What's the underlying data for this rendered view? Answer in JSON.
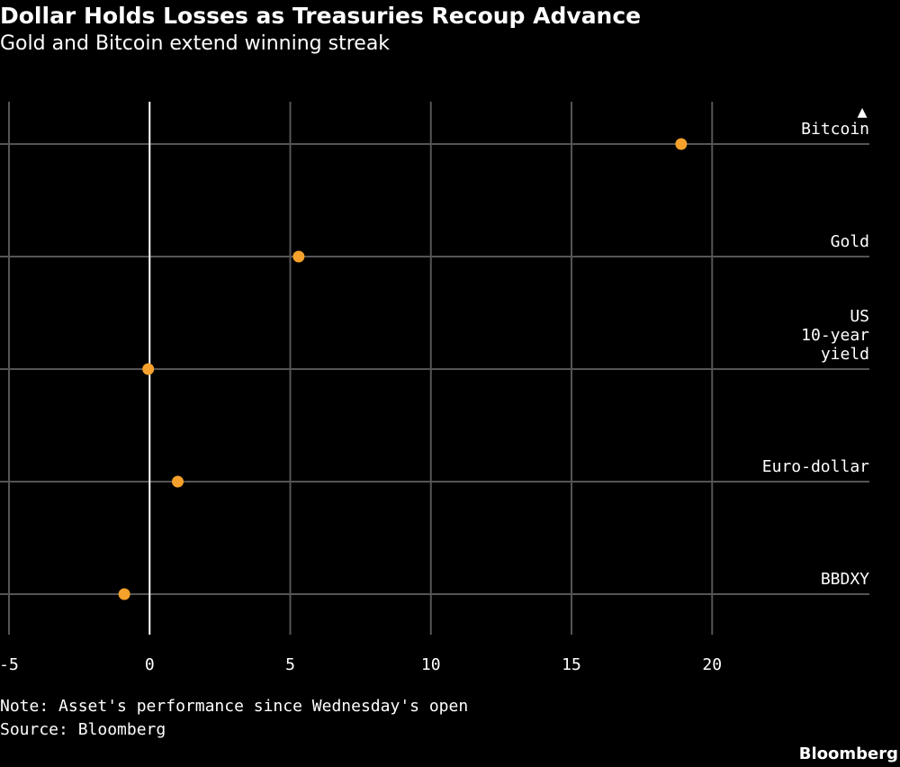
{
  "chart_data": {
    "type": "scatter",
    "title": "Dollar Holds Losses as Treasuries Recoup Advance",
    "subtitle": "Gold and Bitcoin extend winning streak",
    "categories": [
      [
        "Bitcoin"
      ],
      [
        "Gold"
      ],
      [
        "US",
        "10-year",
        "yield"
      ],
      [
        "Euro-dollar"
      ],
      [
        "BBDXY"
      ]
    ],
    "values": [
      18.9,
      5.3,
      -0.05,
      1.0,
      -0.9
    ],
    "xlim": [
      -5,
      25
    ],
    "xticks": [
      -5,
      0,
      5,
      10,
      15,
      20
    ],
    "xtick_labels": [
      "-5",
      "0",
      "5",
      "10",
      "15",
      "20"
    ],
    "grid": true,
    "zero_line": true,
    "marker_color": "#f5a12b",
    "grid_color": "#555555",
    "zero_color": "#ffffff",
    "indicator_glyph": "▲",
    "note": "Note: Asset's performance since Wednesday's open",
    "source": "Source: Bloomberg"
  },
  "brand": "Bloomberg"
}
